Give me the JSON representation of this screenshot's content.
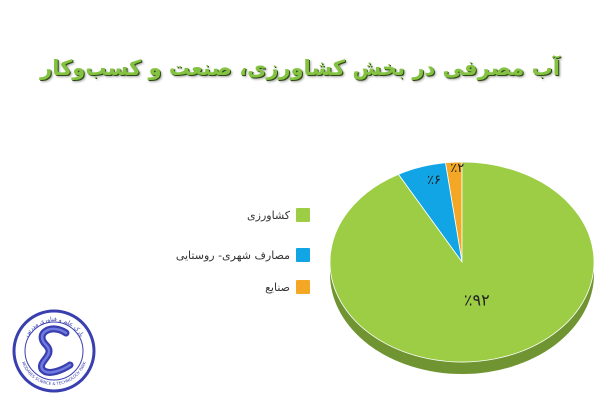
{
  "page": {
    "title": "آب مصرفی در بخش کشاورزی، صنعت و کسب‌وکار"
  },
  "colors": {
    "title": "#84c341",
    "agriculture": "#9ccd45",
    "urban_rural": "#12a5e6",
    "industry": "#f4a724",
    "logo_primary": "#3a3fb0"
  },
  "chart_data": {
    "type": "pie",
    "title": "آب مصرفی در بخش کشاورزی، صنعت و کسب‌وکار",
    "categories": [
      "کشاورزی",
      "مصارف شهری- روستایی",
      "صنایع"
    ],
    "values": [
      92,
      6,
      2
    ],
    "data_labels": [
      "٪۹۲",
      "٪۶",
      "٪۲"
    ],
    "legend": "left",
    "style": "3d"
  },
  "logo": {
    "text_top": "پارک علم و فناوری مدرس",
    "text_bottom": "MODARES SCIENCE & TECHNOLOGY PARK",
    "icon": "s-wave-logo-icon"
  }
}
